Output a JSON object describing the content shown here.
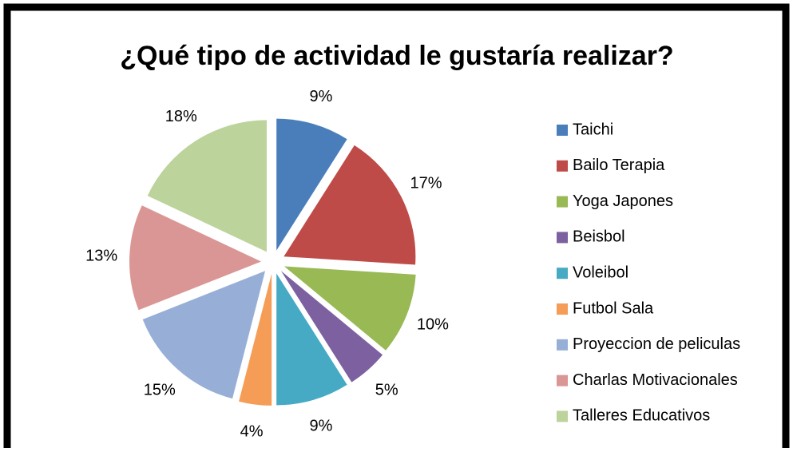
{
  "chart_data": {
    "type": "pie",
    "title": "¿Qué tipo de actividad le gustaría realizar?",
    "categories": [
      "Taichi",
      "Bailo Terapia",
      "Yoga Japones",
      "Beisbol",
      "Voleibol",
      "Futbol Sala",
      "Proyeccion de peliculas",
      "Charlas Motivacionales",
      "Talleres Educativos"
    ],
    "values": [
      9,
      17,
      10,
      5,
      9,
      4,
      15,
      13,
      18
    ],
    "value_labels": [
      "9%",
      "17%",
      "10%",
      "5%",
      "9%",
      "4%",
      "15%",
      "13%",
      "18%"
    ],
    "colors": [
      "#4a7ebb",
      "#be4b48",
      "#98b954",
      "#7d60a0",
      "#46aac5",
      "#f59d56",
      "#97afd6",
      "#da9694",
      "#bcd39b"
    ],
    "legend": "right"
  }
}
